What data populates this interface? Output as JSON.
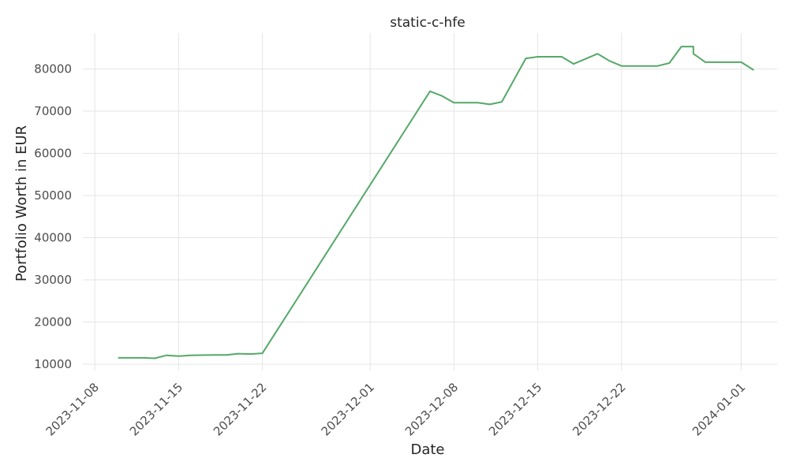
{
  "chart_data": {
    "type": "line",
    "title": "static-c-hfe",
    "xlabel": "Date",
    "ylabel": "Portfolio Worth in EUR",
    "x_tick_labels": [
      "2023-11-08",
      "2023-11-15",
      "2023-11-22",
      "2023-12-01",
      "2023-12-08",
      "2023-12-15",
      "2023-12-22",
      "2024-01-01"
    ],
    "y_tick_labels": [
      "10000",
      "20000",
      "30000",
      "40000",
      "50000",
      "60000",
      "70000",
      "80000"
    ],
    "y_ticks": [
      10000,
      20000,
      30000,
      40000,
      50000,
      60000,
      70000,
      80000
    ],
    "xlim": [
      "2023-11-07",
      "2024-01-04"
    ],
    "ylim": [
      8500,
      88500
    ],
    "grid": true,
    "colors": {
      "line": "#55a868"
    },
    "series": [
      {
        "points": [
          [
            "2023-11-10",
            11500
          ],
          [
            "2023-11-12",
            11500
          ],
          [
            "2023-11-13",
            11400
          ],
          [
            "2023-11-14",
            12100
          ],
          [
            "2023-11-15",
            11900
          ],
          [
            "2023-11-16",
            12100
          ],
          [
            "2023-11-18",
            12200
          ],
          [
            "2023-11-19",
            12200
          ],
          [
            "2023-11-20",
            12500
          ],
          [
            "2023-11-21",
            12400
          ],
          [
            "2023-11-22",
            12600
          ],
          [
            "2023-12-06",
            74700
          ],
          [
            "2023-12-07",
            73600
          ],
          [
            "2023-12-08",
            72000
          ],
          [
            "2023-12-10",
            72000
          ],
          [
            "2023-12-11",
            71600
          ],
          [
            "2023-12-12",
            72200
          ],
          [
            "2023-12-14",
            82500
          ],
          [
            "2023-12-15",
            82900
          ],
          [
            "2023-12-17",
            82900
          ],
          [
            "2023-12-18",
            81200
          ],
          [
            "2023-12-20",
            83600
          ],
          [
            "2023-12-21",
            81900
          ],
          [
            "2023-12-22",
            80700
          ],
          [
            "2023-12-25",
            80700
          ],
          [
            "2023-12-26",
            81400
          ],
          [
            "2023-12-27",
            85300
          ],
          [
            "2023-12-28",
            85300
          ],
          [
            "2023-12-28",
            83600
          ],
          [
            "2023-12-29",
            81600
          ],
          [
            "2024-01-01",
            81600
          ],
          [
            "2024-01-02",
            79800
          ]
        ]
      }
    ]
  }
}
